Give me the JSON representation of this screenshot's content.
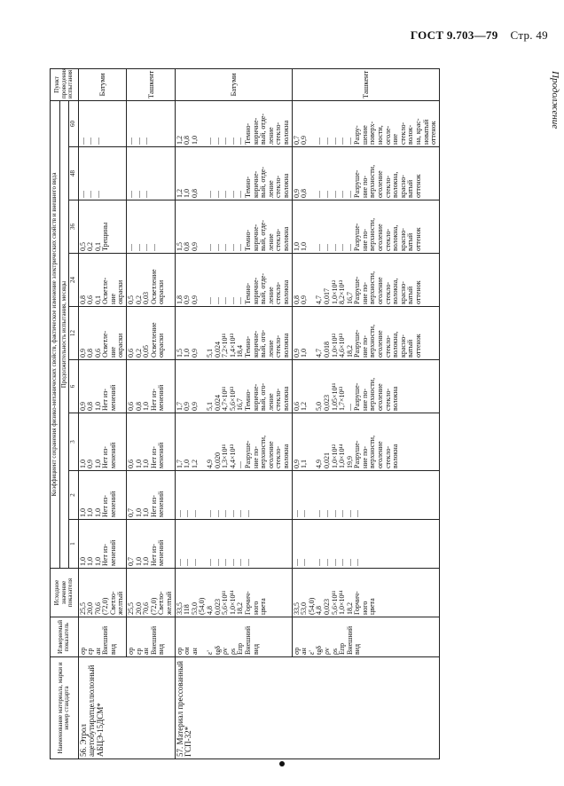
{
  "header": {
    "standard": "ГОСТ 9.703—79",
    "page": "Стр. 49"
  },
  "continuation": "Продолжение",
  "table": {
    "columns": {
      "material": "Наименование материала, марки и номер стандарта",
      "indicator": "Измеряемый показатель",
      "initial": "Исходное значение показателя",
      "group": "Коэффициент сохранения физико-механических свойств, фактическое изменение электрических свойств и внешнего вида",
      "duration": "Продолжительность испытания, месяцы",
      "months": [
        1,
        2,
        3,
        6,
        12,
        24,
        36,
        48,
        60
      ],
      "place": "Пункт проведения испытания"
    },
    "materials": [
      {
        "name": "56. Этрол ацетобутиратцеллюлозный АБЦЭ-15ДСМ*",
        "rows": [
          {
            "indicators": "σр\nεр\naн\nВнешний\nвид",
            "initial": "25,5\n20,0\n70,6\n(72,0)\nСветло-\nжелтый",
            "values": [
              "1,0\n1,0\n1,0\nНет из-\nменений",
              "1,0\n1,0\n1,0\nНет из-\nменений",
              "1,0\n0,9\n1,0\nНет из-\nменений",
              "0,9\n0,8\n1,0\nНет из-\nменений",
              "0,9\n0,8\n0,6\nОсветле-\nние\nокраски",
              "0,8\n0,6\n0,1\nОсветле-\nние\nокраски",
              "0,5\n0,2\n0,1\nТрещины",
              "—\n—\n—",
              "—\n—\n—"
            ],
            "place": "Батуми"
          },
          {
            "indicators": "σр\nεр\naн\nВнешний\nвид",
            "initial": "25,5\n20,0\n70,6\n(72,0)\nСветло-\nжелтый",
            "values": [
              "0,7\n1,0\n1,0\nНет из-\nменений",
              "0,7\n1,0\n1,0\nНет из-\nменений",
              "0,6\n1,0\n1,0\nНет из-\nменений",
              "0,6\n0,8\n1,0\nНет из-\nменений",
              "0,6\n0,2\n0,05\nОсветление\nокраски",
              "0,5\n0,2\n0,03\nОсветление\nокраски",
              "—\n—\n—\n—",
              "—\n—\n—",
              "—\n—\n—"
            ],
            "place": "Ташкент"
          }
        ]
      },
      {
        "name": "57. Материал прессованный ГСП-32*",
        "rows": [
          {
            "indicators": "σр\nσи\naн\n\nε'\ntgδ\nρv\nρs\nEпр\nВнешний\nвид",
            "initial": "33,5\n118\n53,0\n(54,0)\n4,8\n0,023\n5,6×10¹¹\n1,0×10¹⁴\n18,2\nГорчич-\nного\nцвета",
            "values": [
              "—\n—\n—\n\n—\n—\n—\n—\n—\n—",
              "—\n—\n—\n\n—\n—\n—\n—\n—\n—",
              "1,7\n1,0\n1,2\n\n4,9\n0,020\n1,3×10¹¹\n4,4×10¹³\n—\nРазруше-\nние по-\nверхности,\nоголение\nстекло-\nволокна",
              "1,7\n0,9\n0,9\n\n5,1\n0,024\n4,7×10¹¹\n5,6×10¹³\n16,7\nТемно-\nкоричне-\nвый, ого-\nление\nстекло-\nволокна",
              "1,5\n1,0\n0,9\n\n5,1\n0,024\n7,2×10¹¹\n1,4×10¹³\n18,4\nТемно-\nкоричне-\nвый, ого-\nление\nстекло-\nволокна",
              "1,8\n0,9\n0,9\n\n—\n—\n—\n—\n—\nТемно-\nкоричне-\nвый, отде-\nление\nстекло-\nволокна",
              "1,5\n0,8\n0,9\n\n—\n—\n—\n—\n—\nТемно-\nкоричне-\nвый, отде-\nление\nстекло-\nволокна",
              "1,2\n1,0\n0,8\n\n—\n—\n—\n—\n—\nТемно-\nкоричне-\nвый, отде-\nление\nстекло-\nволокна",
              "1,2\n0,8\n1,0\n\n—\n—\n—\n—\n—\nТемно-\nкоричне-\nвый, отде-\nление\nстекло-\nволокна"
            ],
            "place": "Батуми"
          },
          {
            "indicators": "σр\naн\nε'\ntgδ\nρv\nρs\nEпр\nВнешний\nвид",
            "initial": "33,5\n53,0\n(54,0)\n4,8\n0,023\n5,6×10¹¹\n1,0×10¹⁴\n18,2\nГорчич-\nного\nцвета",
            "values": [
              "—\n—\n\n—\n—\n—\n—\n—\n—",
              "—\n—\n\n—\n—\n—\n—\n—\n—",
              "0,9\n1,1\n\n4,9\n0,021\n1,0×10¹²\n1,0×10¹⁴\n19,9\nРазруше-\nние по-\nверхности,\nоголение\nстекло-\nволокна",
              "0,6\n1,2\n\n5,0\n0,023\n1,05×10¹¹\n1,7×10¹³\n—\nРазруше-\nние по-\nверхности,\nоголение\nстекло-\nволокна",
              "0,9\n1,0\n\n4,7\n0,018\n1,0×10¹²\n4,6×10¹³\n18,2\nРазруше-\nние по-\nверхности,\nоголение\nстекло-\nволокна,\nкрасно-\nватый\nоттенок",
              "0,8\n0,9\n\n4,7\n0,017\n1,0×10¹²\n8,2×10¹³\n16,7\nРазруше-\nние по-\nверхности,\nоголение\nстекло-\nволокна,\nкрасно-\nватый\nоттенок",
              "1,0\n1,0\n\n—\n—\n—\n—\n—\nРазруше-\nние по-\nверхности,\nоголение\nстекло-\nволокна,\nкрасно-\nватый\nоттенок",
              "0,9\n0,8\n\n—\n—\n—\n—\n—\nРазруше-\nние по-\nверхности,\nоголение\nстекло-\nволокна,\nкрасно-\nватый\nоттенок",
              "0,7\n0,9\n\n—\n—\n—\n—\n—\nРазру-\nшение\nповерх-\nности,\nоголе-\nние\nстекло-\nволок-\nна, крас-\nноватый\nоттенок"
            ],
            "place": "Ташкент"
          }
        ]
      }
    ]
  }
}
